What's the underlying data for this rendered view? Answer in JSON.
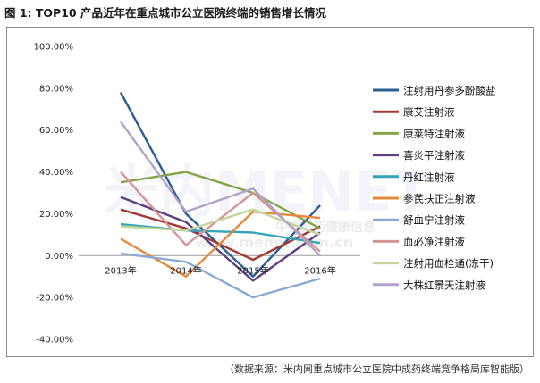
{
  "title": "图 1: TOP10 产品近年在重点城市公立医院终端的销售增长情况",
  "source": "（数据来源：米内网重点城市公立医院中成药终端竞争格局库智能版）",
  "watermark": {
    "brand": "米内MENET",
    "slogan": "中国医药健康信息",
    "url": "www.menet.com.cn"
  },
  "chart_data": {
    "type": "line",
    "x": [
      "2013年",
      "2014年",
      "2015年",
      "2016年"
    ],
    "yticks": [
      "100.00%",
      "80.00%",
      "60.00%",
      "40.00%",
      "20.00%",
      "0.00%",
      "-20.00%",
      "-40.00%"
    ],
    "ylim": [
      -40,
      100
    ],
    "legend_position": "right",
    "series": [
      {
        "name": "注射用丹参多酚酸盐",
        "color": "#2b5c94",
        "values": [
          78,
          20,
          -10,
          24
        ]
      },
      {
        "name": "康艾注射液",
        "color": "#a33a38",
        "values": [
          22,
          13,
          -2,
          14
        ]
      },
      {
        "name": "康莱特注射液",
        "color": "#86a447",
        "values": [
          35,
          40,
          30,
          13
        ]
      },
      {
        "name": "喜炎平注射液",
        "color": "#5d3f82",
        "values": [
          28,
          16,
          -12,
          11
        ]
      },
      {
        "name": "丹红注射液",
        "color": "#36a4b8",
        "values": [
          15,
          12,
          11,
          6
        ]
      },
      {
        "name": "参芪扶正注射液",
        "color": "#e6883a",
        "values": [
          8,
          -10,
          21,
          18
        ]
      },
      {
        "name": "舒血宁注射液",
        "color": "#8aa9d2",
        "values": [
          1,
          -3,
          -20,
          -11
        ]
      },
      {
        "name": "血必净注射液",
        "color": "#d49594",
        "values": [
          40,
          5,
          30,
          2
        ]
      },
      {
        "name": "注射用血栓通(冻干)",
        "color": "#c3d69b",
        "values": [
          14,
          12,
          22,
          10
        ]
      },
      {
        "name": "大株红景天注射液",
        "color": "#b2a2c7",
        "values": [
          64,
          21,
          32,
          0
        ]
      }
    ]
  }
}
